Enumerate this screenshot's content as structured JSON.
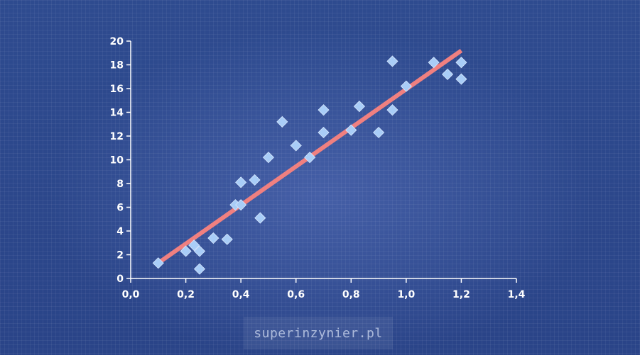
{
  "watermark": "superinzynier.pl",
  "colors": {
    "background": "#2e4b8f",
    "axis": "#ffffff",
    "points": "#a9cdf7",
    "trendline": "#f08080"
  },
  "chart_data": {
    "type": "scatter",
    "title": "",
    "xlabel": "",
    "ylabel": "",
    "xlim": [
      0,
      1.4
    ],
    "ylim": [
      0,
      20
    ],
    "grid": false,
    "legend": "none",
    "x_ticks": [
      "0,0",
      "0,2",
      "0,4",
      "0,6",
      "0,8",
      "1,0",
      "1,2",
      "1,4"
    ],
    "x_tick_values": [
      0,
      0.2,
      0.4,
      0.6,
      0.8,
      1.0,
      1.2,
      1.4
    ],
    "y_ticks": [
      "0",
      "2",
      "4",
      "6",
      "8",
      "10",
      "12",
      "14",
      "16",
      "18",
      "20"
    ],
    "y_tick_values": [
      0,
      2,
      4,
      6,
      8,
      10,
      12,
      14,
      16,
      18,
      20
    ],
    "series": [
      {
        "x": [
          0.1,
          0.2,
          0.23,
          0.25,
          0.25,
          0.3,
          0.35,
          0.38,
          0.4,
          0.4,
          0.45,
          0.47,
          0.5,
          0.55,
          0.6,
          0.65,
          0.7,
          0.7,
          0.8,
          0.83,
          0.9,
          0.95,
          0.95,
          1.0,
          1.1,
          1.15,
          1.2,
          1.2
        ],
        "y": [
          1.3,
          2.3,
          2.8,
          2.3,
          0.8,
          3.4,
          3.3,
          6.2,
          6.2,
          8.1,
          8.3,
          5.1,
          10.2,
          13.2,
          11.2,
          10.2,
          12.3,
          14.2,
          12.5,
          14.5,
          12.3,
          14.2,
          18.3,
          16.2,
          18.2,
          17.2,
          18.2,
          16.8
        ]
      }
    ],
    "trendline": {
      "x": [
        0.1,
        1.2
      ],
      "y": [
        1.3,
        19.2
      ]
    }
  }
}
